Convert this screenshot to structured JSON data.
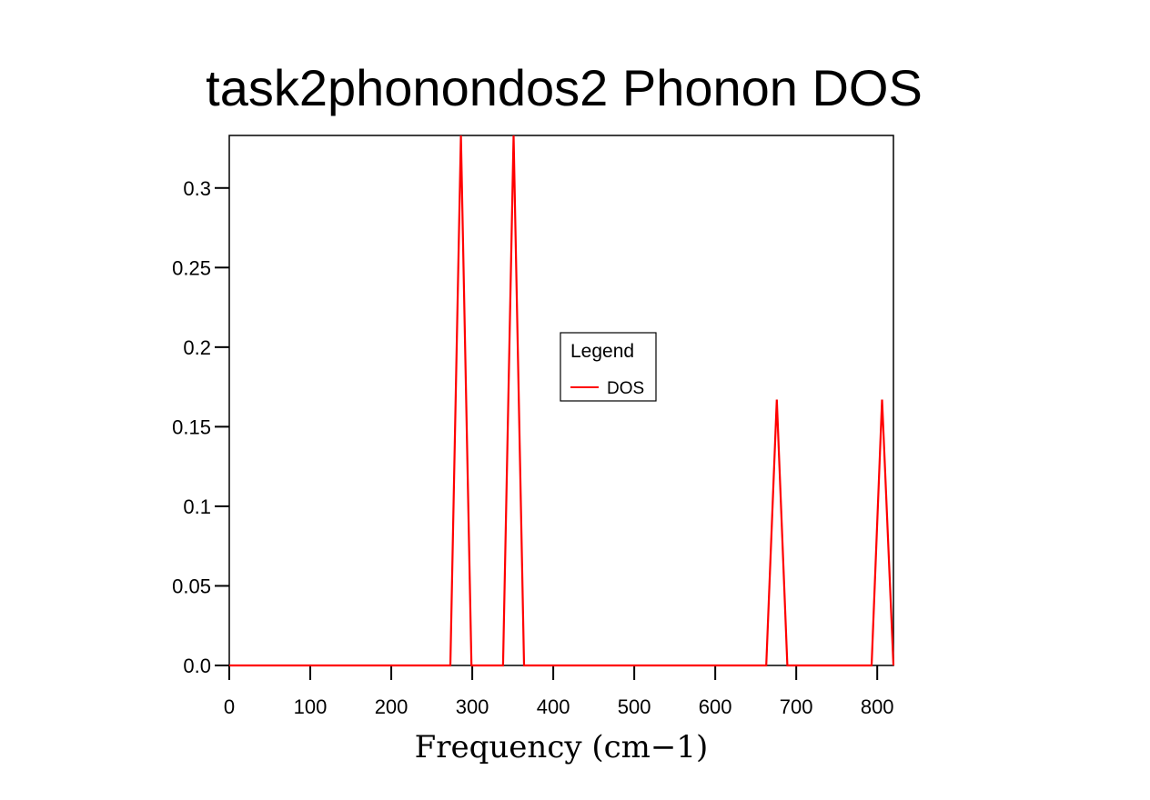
{
  "chart_data": {
    "type": "line",
    "title": "task2phonondos2 Phonon DOS",
    "xlabel": "Frequency (cm−1)",
    "ylabel": "",
    "xlim": [
      0,
      820
    ],
    "ylim": [
      0,
      0.333
    ],
    "x_ticks": [
      0,
      100,
      200,
      300,
      400,
      500,
      600,
      700,
      800
    ],
    "y_ticks": [
      0.0,
      0.05,
      0.1,
      0.15,
      0.2,
      0.25,
      0.3
    ],
    "x_tick_labels": [
      "0",
      "100",
      "200",
      "300",
      "400",
      "500",
      "600",
      "700",
      "800"
    ],
    "y_tick_labels": [
      "0.0",
      "0.05",
      "0.1",
      "0.15",
      "0.2",
      "0.25",
      "0.3"
    ],
    "grid": false,
    "legend": {
      "title": "Legend",
      "position": "center"
    },
    "series": [
      {
        "name": "DOS",
        "color": "#ff0000",
        "x": [
          0,
          273,
          286,
          299,
          338,
          351,
          364,
          663,
          676,
          689,
          793,
          806,
          820
        ],
        "y": [
          0,
          0,
          0.333,
          0,
          0,
          0.333,
          0,
          0,
          0.167,
          0,
          0,
          0.167,
          0
        ]
      }
    ]
  }
}
